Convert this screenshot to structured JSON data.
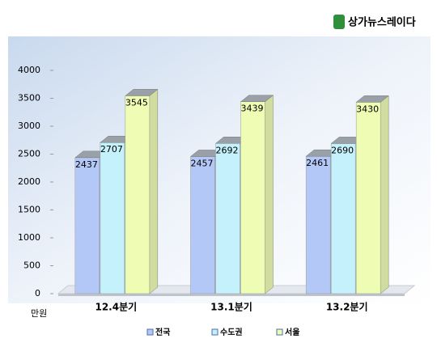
{
  "logo": "상가뉴스레이다",
  "chart_data": {
    "type": "bar3d",
    "y_unit": "만원",
    "categories": [
      "12.4분기",
      "13.1분기",
      "13.2분기"
    ],
    "series": [
      {
        "name": "전국",
        "color": "#b4c8f7",
        "values": [
          2437,
          2457,
          2461
        ]
      },
      {
        "name": "수도권",
        "color": "#c4f1fb",
        "values": [
          2707,
          2692,
          2690
        ]
      },
      {
        "name": "서울",
        "color": "#eefcb4",
        "values": [
          3545,
          3439,
          3430
        ]
      }
    ],
    "ylim": [
      0,
      4000
    ],
    "yticks": [
      0,
      500,
      1000,
      1500,
      2000,
      2500,
      3000,
      3500,
      4000
    ]
  }
}
